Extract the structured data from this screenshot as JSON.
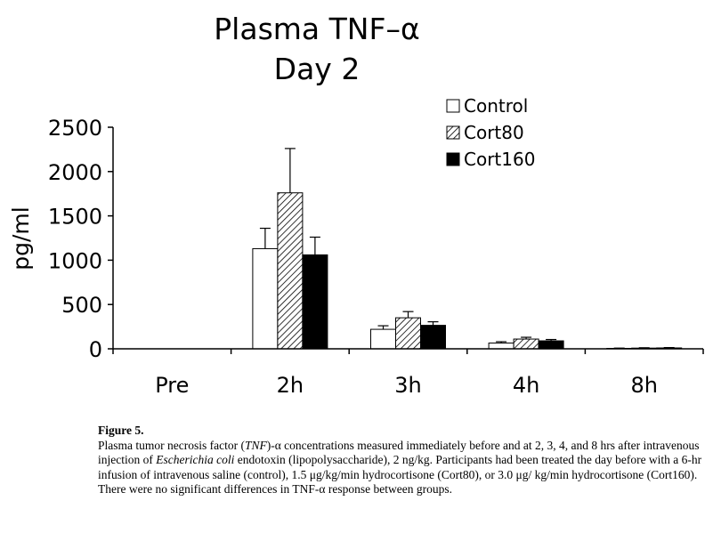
{
  "chart_data": {
    "type": "bar",
    "title": "Plasma TNF–α",
    "subtitle": "Day 2",
    "ylabel": "pg/ml",
    "xlabel": "",
    "ylim": [
      0,
      2500
    ],
    "yticks": [
      "0",
      "500",
      "1000",
      "1500",
      "2000",
      "2500"
    ],
    "categories": [
      "Pre",
      "2h",
      "3h",
      "4h",
      "8h"
    ],
    "legend_position": "top-right",
    "grid": false,
    "series": [
      {
        "name": "Control",
        "fill": "white",
        "values": [
          0,
          1130,
          220,
          65,
          5
        ],
        "errors": [
          0,
          230,
          40,
          15,
          3
        ]
      },
      {
        "name": "Cort80",
        "fill": "hatched",
        "values": [
          0,
          1760,
          350,
          110,
          8
        ],
        "errors": [
          0,
          500,
          70,
          20,
          4
        ]
      },
      {
        "name": "Cort160",
        "fill": "black",
        "values": [
          0,
          1060,
          265,
          90,
          10
        ],
        "errors": [
          0,
          200,
          40,
          15,
          4
        ]
      }
    ]
  },
  "caption": {
    "figure_label": "Figure 5.",
    "p1": "Plasma tumor necrosis factor (",
    "i1": "TNF",
    "p2": ")-α concentrations measured immediately before and at 2, 3, 4, and 8 hrs after intravenous injection of ",
    "i2": "Escherichia coli",
    "p3": " endotoxin (lipopolysaccharide), 2 ng/kg. Participants had been treated the day before with a 6-hr infusion of intravenous saline (control), 1.5 μg/kg/min hydrocortisone (Cort80), or 3.0 μg/ kg/min hydrocortisone (Cort160). There were no significant differences in TNF-α response between groups."
  }
}
